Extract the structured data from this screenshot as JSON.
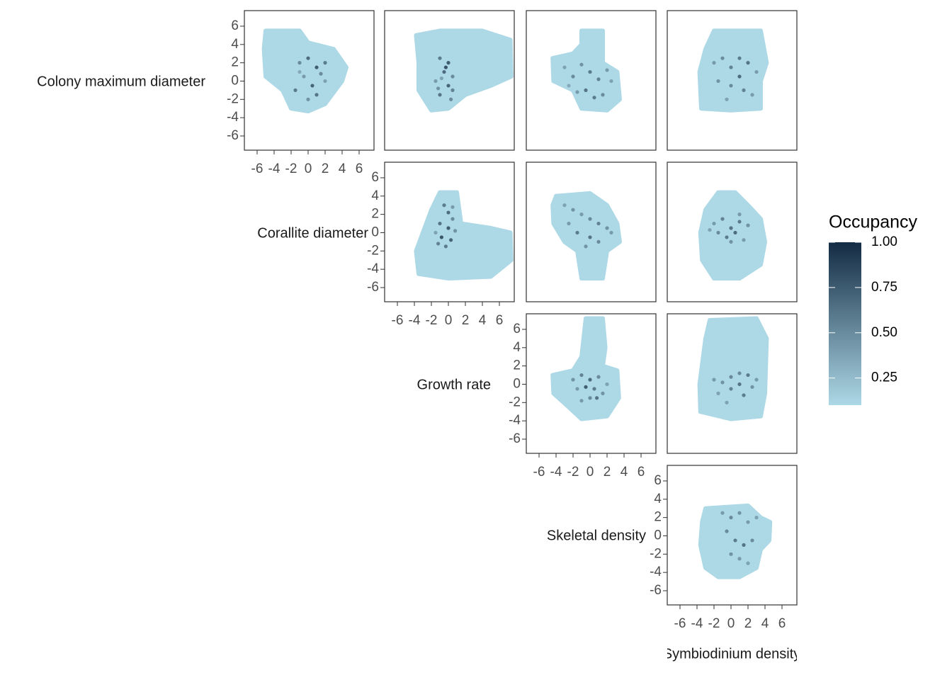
{
  "chart_data": {
    "type": "scatter",
    "variables": [
      "Colony maximum diameter",
      "Corallite diameter",
      "Growth rate",
      "Skeletal density",
      "Symbiodinium density"
    ],
    "xlim": [
      -7.5,
      7.75
    ],
    "ylim": [
      -7.55,
      7.7
    ],
    "xticks": [
      -6,
      -4,
      -2,
      0,
      2,
      4,
      6
    ],
    "yticks": [
      -6,
      -4,
      -2,
      0,
      2,
      4,
      6
    ],
    "color_scale": {
      "title": "Occupancy",
      "low": "#add8e6",
      "high": "#132b43",
      "limits": [
        0.1,
        1.0
      ],
      "ticks": [
        {
          "value": 1.0,
          "label": "1.00"
        },
        {
          "value": 0.75,
          "label": "0.75"
        },
        {
          "value": 0.5,
          "label": "0.50"
        },
        {
          "value": 0.25,
          "label": "0.25"
        }
      ]
    },
    "panels": [
      [
        {
          "hull": {
            "x": [
              -5,
              -1,
              0,
              3,
              4.5,
              4,
              2,
              0,
              -2,
              -3,
              -5,
              -5.2
            ],
            "y": [
              5.5,
              5.5,
              4.2,
              3.5,
              1.5,
              0,
              -2.5,
              -3.3,
              -3,
              -1,
              0.5,
              3.5
            ]
          },
          "points": {
            "x": [
              -1,
              0,
              1,
              2,
              -0.5,
              0.5,
              1.5,
              -1.5,
              0,
              1,
              2,
              -1
            ],
            "y": [
              2,
              2.5,
              1.5,
              2,
              0.5,
              -0.5,
              0.8,
              -1,
              -2,
              -1.5,
              0,
              1
            ],
            "occupancy": [
              0.6,
              0.8,
              0.9,
              0.7,
              0.5,
              0.85,
              0.6,
              0.7,
              0.55,
              0.75,
              0.45,
              0.4
            ]
          }
        },
        {
          "hull": {
            "x": [
              -3.8,
              -1,
              4,
              7.3,
              7.4,
              5,
              2,
              0,
              -2,
              -3.5,
              -3.5
            ],
            "y": [
              5,
              5.5,
              5.5,
              4.5,
              0.5,
              -0.5,
              -1.5,
              -3,
              -3.2,
              -1,
              2
            ]
          },
          "points": {
            "x": [
              -1,
              0,
              -0.5,
              0.5,
              -1.5,
              0,
              -1,
              0.3,
              -0.3,
              -1.2,
              0.5,
              -0.8
            ],
            "y": [
              2.5,
              2,
              1,
              0.5,
              0,
              -0.5,
              -1.5,
              -2,
              1.5,
              -0.8,
              -1,
              0.3
            ],
            "occupancy": [
              0.7,
              0.9,
              0.8,
              0.6,
              0.5,
              0.85,
              0.75,
              0.6,
              0.95,
              0.55,
              0.65,
              0.45
            ]
          }
        },
        {
          "hull": {
            "x": [
              -1,
              1.5,
              1.5,
              3.2,
              3.5,
              2,
              -1,
              -2,
              -4.3,
              -4.4,
              -2,
              -1
            ],
            "y": [
              5.5,
              5.5,
              2,
              1,
              -2,
              -3.2,
              -3,
              -1,
              0,
              2.5,
              3,
              4
            ]
          },
          "points": {
            "x": [
              -3,
              -2,
              -1,
              0,
              1,
              2,
              -2.5,
              -0.5,
              0.5,
              1.5,
              2.5,
              -1.5
            ],
            "y": [
              1.5,
              0.5,
              1.8,
              1,
              0.2,
              1.2,
              -0.5,
              -1,
              -1.8,
              -1.5,
              0,
              -1.2
            ],
            "occupancy": [
              0.45,
              0.6,
              0.55,
              0.7,
              0.65,
              0.5,
              0.4,
              0.75,
              0.7,
              0.6,
              0.45,
              0.5
            ]
          }
        },
        {
          "hull": {
            "x": [
              -2,
              3.5,
              4.2,
              3.5,
              3.5,
              0,
              -3.5,
              -3.7,
              -3
            ],
            "y": [
              5.5,
              5.5,
              2,
              0,
              -3,
              -3.2,
              -3,
              1,
              3.5
            ]
          },
          "points": {
            "x": [
              -2,
              -1,
              0,
              1,
              2,
              3,
              -1.5,
              0,
              1.5,
              2.5,
              -0.5,
              1
            ],
            "y": [
              2,
              2.5,
              1.5,
              2.5,
              2,
              1,
              0,
              -0.5,
              -1,
              -1.5,
              -2,
              0.5
            ],
            "occupancy": [
              0.5,
              0.6,
              0.65,
              0.7,
              0.75,
              0.5,
              0.55,
              0.6,
              0.65,
              0.5,
              0.45,
              0.8
            ]
          }
        }
      ],
      [
        {
          "hull": {
            "x": [
              -1,
              1,
              1.5,
              5,
              7.3,
              7.4,
              5,
              0,
              -3.5,
              -3.8,
              -3,
              -2
            ],
            "y": [
              4.4,
              4.4,
              1,
              0.5,
              0,
              -3,
              -4.8,
              -5,
              -4.5,
              -2,
              0,
              2.5
            ]
          },
          "points": {
            "x": [
              -0.5,
              0,
              0.5,
              -1,
              0,
              -0.8,
              0.3,
              -1.2,
              0.8,
              -0.3,
              0.5,
              -1.5
            ],
            "y": [
              3,
              2.2,
              1.5,
              1,
              0.5,
              -0.5,
              -0.8,
              -1.2,
              0.2,
              -1.5,
              2.8,
              0
            ],
            "occupancy": [
              0.7,
              0.8,
              0.6,
              0.75,
              0.9,
              0.95,
              0.85,
              0.65,
              0.55,
              0.7,
              0.5,
              0.45
            ]
          }
        },
        {
          "hull": {
            "x": [
              -4,
              0,
              2,
              3.2,
              3.5,
              2,
              1.5,
              -1,
              -1.5,
              -3,
              -4.3,
              -4.4
            ],
            "y": [
              4,
              4.3,
              3,
              1,
              -1,
              -2,
              -5,
              -5,
              -2,
              -1,
              1,
              3
            ]
          },
          "points": {
            "x": [
              -3,
              -2,
              -1,
              0,
              1,
              2,
              -2.5,
              -1.5,
              0,
              1,
              2.5,
              -0.5
            ],
            "y": [
              3,
              2.5,
              2,
              1.5,
              1,
              0.5,
              1,
              0,
              -0.5,
              -1,
              0,
              -1.5
            ],
            "occupancy": [
              0.45,
              0.55,
              0.5,
              0.6,
              0.65,
              0.55,
              0.5,
              0.7,
              0.75,
              0.6,
              0.5,
              0.55
            ]
          }
        },
        {
          "hull": {
            "x": [
              -1.5,
              0.5,
              2,
              3.5,
              4,
              3.5,
              1,
              -2,
              -3.4,
              -3.6,
              -3
            ],
            "y": [
              4.4,
              4.4,
              3,
              1.5,
              -1,
              -3.5,
              -5,
              -5,
              -3,
              0,
              2.5
            ]
          },
          "points": {
            "x": [
              -2,
              -1,
              0,
              1,
              2,
              -1.5,
              -0.5,
              0.5,
              1.5,
              -2.5,
              0,
              1
            ],
            "y": [
              1,
              1.5,
              0.5,
              1.2,
              0.8,
              0,
              -0.5,
              0,
              -0.8,
              0.3,
              -1,
              2
            ],
            "occupancy": [
              0.5,
              0.65,
              0.75,
              0.7,
              0.55,
              0.6,
              0.7,
              0.8,
              0.5,
              0.45,
              0.55,
              0.5
            ]
          }
        }
      ],
      [
        {
          "hull": {
            "x": [
              -0.5,
              1.5,
              1.8,
              1.5,
              3.2,
              3.4,
              2,
              -1,
              -2.5,
              -4.3,
              -4.4,
              -2,
              -1
            ],
            "y": [
              7.2,
              7.2,
              4,
              2,
              1.5,
              -1.5,
              -3.5,
              -3.8,
              -2.5,
              -1,
              1,
              1.5,
              3
            ]
          },
          "points": {
            "x": [
              -2,
              -1,
              0,
              1,
              -1.5,
              -0.5,
              0.5,
              1.5,
              2,
              0,
              -1,
              0.8
            ],
            "y": [
              0.5,
              1,
              0.5,
              0.8,
              -0.5,
              -0.3,
              -0.5,
              -1,
              0,
              -1.5,
              -1.8,
              -1.5
            ],
            "occupancy": [
              0.55,
              0.65,
              0.8,
              0.6,
              0.5,
              0.9,
              0.7,
              0.55,
              0.45,
              0.6,
              0.5,
              0.75
            ]
          }
        },
        {
          "hull": {
            "x": [
              -2.5,
              3,
              4.2,
              4,
              3.5,
              0,
              -3.6,
              -3.7,
              -3
            ],
            "y": [
              7,
              7.2,
              5,
              -1,
              -3.5,
              -3.8,
              -3,
              0,
              5
            ]
          },
          "points": {
            "x": [
              -2,
              -1,
              0,
              1,
              2,
              3,
              -1.5,
              0,
              1.5,
              2.5,
              -0.5,
              1
            ],
            "y": [
              0.5,
              0.2,
              0.8,
              0,
              1,
              0.5,
              -1,
              -0.5,
              -1.2,
              -0.3,
              -2,
              1.2
            ],
            "occupancy": [
              0.5,
              0.55,
              0.6,
              0.75,
              0.7,
              0.5,
              0.45,
              0.65,
              0.7,
              0.55,
              0.45,
              0.6
            ]
          }
        }
      ],
      [
        {
          "hull": {
            "x": [
              -3,
              2,
              3.5,
              4.6,
              4.5,
              3.5,
              3,
              1,
              -1.5,
              -3,
              -3.6,
              -3.4
            ],
            "y": [
              3,
              3.3,
              2,
              1.5,
              -0.5,
              -1.5,
              -3.5,
              -4.5,
              -4.5,
              -3.5,
              -1,
              1.5
            ]
          },
          "points": {
            "x": [
              -1,
              0,
              1,
              2,
              3,
              -0.5,
              0.5,
              1.5,
              2.5,
              0,
              1,
              2
            ],
            "y": [
              2.5,
              2,
              2.5,
              1.5,
              2,
              0.5,
              -0.5,
              -1,
              -0.5,
              -2,
              -2.5,
              -3
            ],
            "occupancy": [
              0.5,
              0.6,
              0.55,
              0.5,
              0.45,
              0.6,
              0.7,
              0.75,
              0.6,
              0.55,
              0.5,
              0.45
            ]
          }
        }
      ]
    ]
  }
}
